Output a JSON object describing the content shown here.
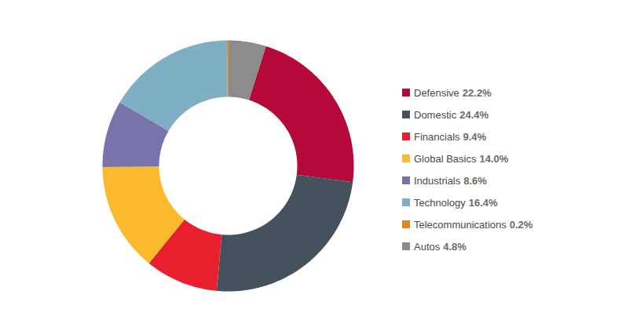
{
  "chart_data": {
    "type": "donut",
    "categories": [
      "Defensive",
      "Domestic",
      "Financials",
      "Global Basics",
      "Industrials",
      "Technology",
      "Telecommunications",
      "Autos"
    ],
    "values": [
      22.2,
      24.4,
      9.4,
      14.0,
      8.6,
      16.4,
      0.2,
      4.8
    ],
    "value_labels": [
      "22.2%",
      "24.4%",
      "9.4%",
      "14.0%",
      "8.6%",
      "16.4%",
      "0.2%",
      "4.8%"
    ],
    "colors": [
      "#b5093a",
      "#45525e",
      "#e8202e",
      "#fbb92e",
      "#7873ab",
      "#7eafc4",
      "#e0861d",
      "#8c8c8c"
    ],
    "legend": "right"
  }
}
